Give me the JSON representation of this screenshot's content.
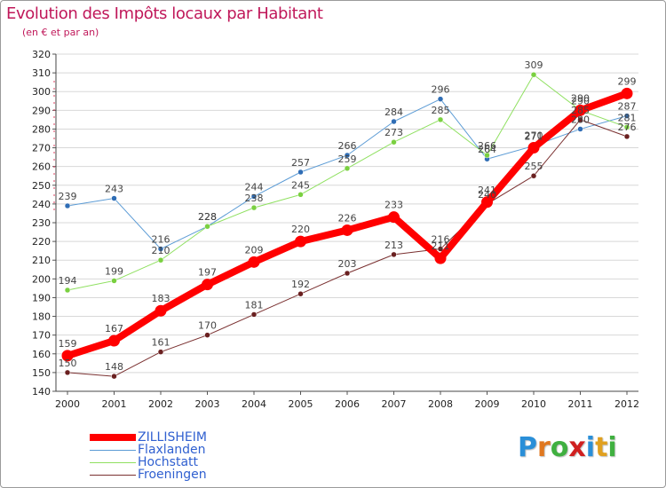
{
  "title": "Evolution des Impôts locaux par Habitant",
  "subtitle": "(en € et par an)",
  "logo": {
    "letters": [
      "P",
      "r",
      "o",
      "x",
      "i",
      "t",
      "i"
    ],
    "colors": [
      "#2a8fd8",
      "#e07820",
      "#40b040",
      "#d02020",
      "#2a8fd8",
      "#e0a020",
      "#40b040"
    ]
  },
  "chart_data": {
    "type": "line",
    "title": "Evolution des Impôts locaux par Habitant",
    "subtitle": "(en € et par an)",
    "xlabel": "",
    "ylabel": "",
    "ylim": [
      140,
      320
    ],
    "ytick_step": 10,
    "grid": "horizontal",
    "legend_position": "bottom-left",
    "categories": [
      "2000",
      "2001",
      "2002",
      "2003",
      "2004",
      "2005",
      "2006",
      "2007",
      "2008",
      "2009",
      "2010",
      "2011",
      "2012"
    ],
    "series": [
      {
        "name": "Flaxlanden",
        "color": "#5b9bd5",
        "marker": "#2f6db5",
        "width": 1,
        "values": [
          239,
          243,
          216,
          228,
          244,
          257,
          266,
          284,
          296,
          264,
          271,
          280,
          287
        ]
      },
      {
        "name": "Hochstatt",
        "color": "#8fe060",
        "marker": "#7ad040",
        "width": 1,
        "values": [
          194,
          199,
          210,
          228,
          238,
          245,
          259,
          273,
          285,
          266,
          309,
          290,
          281
        ]
      },
      {
        "name": "Froeningen",
        "color": "#7a3030",
        "marker": "#6a2020",
        "width": 1,
        "values": [
          150,
          148,
          161,
          170,
          181,
          192,
          203,
          213,
          216,
          240,
          255,
          285,
          276
        ]
      },
      {
        "name": "ZILLISHEIM",
        "color": "#ff0000",
        "marker": "#ff0000",
        "width": 8,
        "values": [
          159,
          167,
          183,
          197,
          209,
          220,
          226,
          233,
          211,
          241,
          270,
          290,
          299
        ]
      }
    ],
    "legend_order": [
      "ZILLISHEIM",
      "Flaxlanden",
      "Hochstatt",
      "Froeningen"
    ]
  }
}
